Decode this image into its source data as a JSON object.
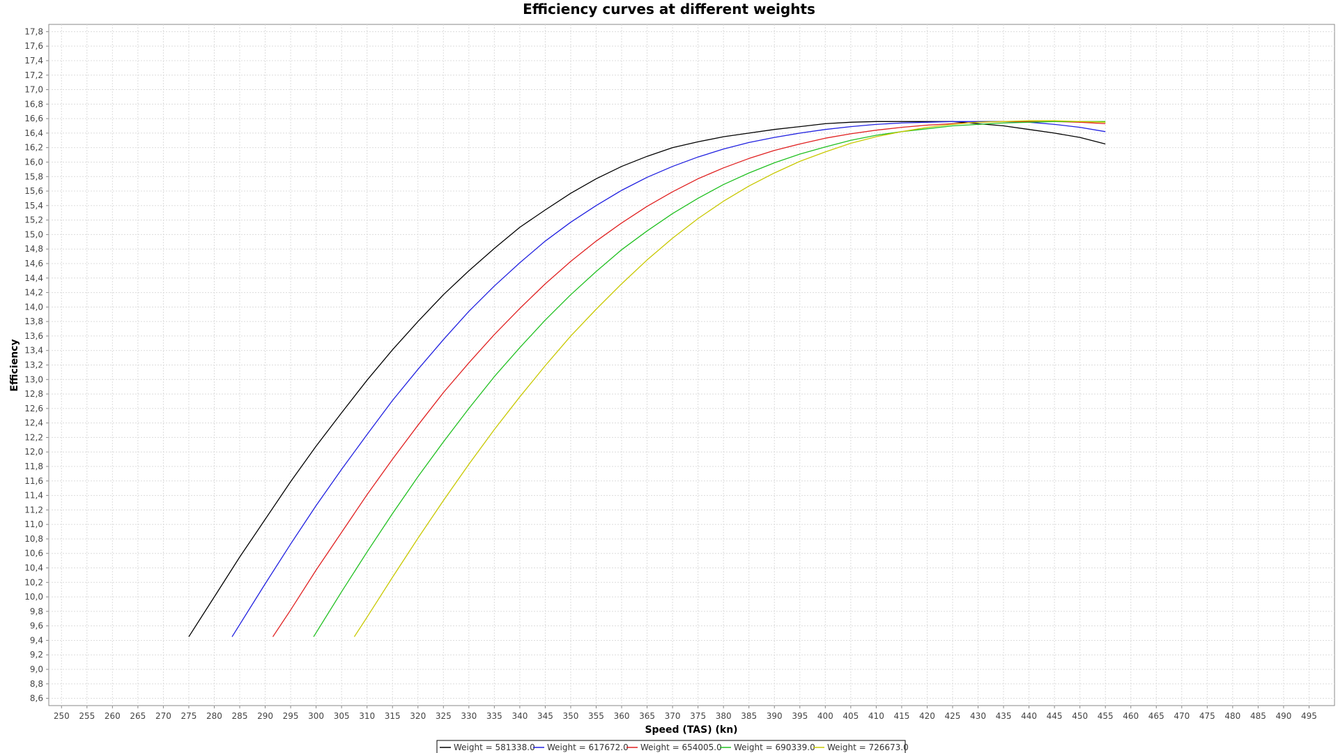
{
  "chart_data": {
    "type": "line",
    "title": "Efficiency curves at different weights",
    "xlabel": "Speed (TAS) (kn)",
    "ylabel": "Efficiency",
    "xlim": [
      247.5,
      500
    ],
    "ylim": [
      8.5,
      17.9
    ],
    "x_ticks": [
      250,
      255,
      260,
      265,
      270,
      275,
      280,
      285,
      290,
      295,
      300,
      305,
      310,
      315,
      320,
      325,
      330,
      335,
      340,
      345,
      350,
      355,
      360,
      365,
      370,
      375,
      380,
      385,
      390,
      395,
      400,
      405,
      410,
      415,
      420,
      425,
      430,
      435,
      440,
      445,
      450,
      455,
      460,
      465,
      470,
      475,
      480,
      485,
      490,
      495
    ],
    "y_ticks": [
      "8,6",
      "8,8",
      "9,0",
      "9,2",
      "9,4",
      "9,6",
      "9,8",
      "10,0",
      "10,2",
      "10,4",
      "10,6",
      "10,8",
      "11,0",
      "11,2",
      "11,4",
      "11,6",
      "11,8",
      "12,0",
      "12,2",
      "12,4",
      "12,6",
      "12,8",
      "13,0",
      "13,2",
      "13,4",
      "13,6",
      "13,8",
      "14,0",
      "14,2",
      "14,4",
      "14,6",
      "14,8",
      "15,0",
      "15,2",
      "15,4",
      "15,6",
      "15,8",
      "16,0",
      "16,2",
      "16,4",
      "16,6",
      "16,8",
      "17,0",
      "17,2",
      "17,4",
      "17,6",
      "17,8"
    ],
    "grid": true,
    "legend_position": "bottom",
    "series": [
      {
        "name": "Weight = 581338.0",
        "color": "#000000",
        "x": [
          275,
          280,
          285,
          290,
          295,
          300,
          305,
          310,
          315,
          320,
          325,
          330,
          335,
          340,
          345,
          350,
          355,
          360,
          365,
          370,
          375,
          380,
          385,
          390,
          395,
          400,
          405,
          410,
          415,
          420,
          425,
          430,
          435,
          440,
          445,
          450,
          455
        ],
        "y": [
          9.45,
          10.0,
          10.55,
          11.07,
          11.59,
          12.08,
          12.54,
          12.99,
          13.41,
          13.8,
          14.17,
          14.5,
          14.81,
          15.1,
          15.34,
          15.57,
          15.77,
          15.94,
          16.08,
          16.2,
          16.28,
          16.35,
          16.4,
          16.45,
          16.49,
          16.53,
          16.55,
          16.56,
          16.56,
          16.56,
          16.56,
          16.53,
          16.5,
          16.45,
          16.4,
          16.34,
          16.25
        ]
      },
      {
        "name": "Weight = 617672.0",
        "color": "#2020e0",
        "x": [
          283.5,
          290,
          295,
          300,
          305,
          310,
          315,
          320,
          325,
          330,
          335,
          340,
          345,
          350,
          355,
          360,
          365,
          370,
          375,
          380,
          385,
          390,
          395,
          400,
          405,
          410,
          415,
          420,
          425,
          430,
          435,
          440,
          445,
          450,
          455
        ],
        "y": [
          9.45,
          10.18,
          10.73,
          11.26,
          11.76,
          12.24,
          12.71,
          13.14,
          13.55,
          13.94,
          14.29,
          14.61,
          14.91,
          15.17,
          15.4,
          15.61,
          15.79,
          15.94,
          16.07,
          16.18,
          16.27,
          16.34,
          16.4,
          16.45,
          16.49,
          16.52,
          16.54,
          16.55,
          16.56,
          16.56,
          16.56,
          16.55,
          16.52,
          16.48,
          16.42
        ]
      },
      {
        "name": "Weight = 654005.0",
        "color": "#e02020",
        "x": [
          291.5,
          295,
          300,
          305,
          310,
          315,
          320,
          325,
          330,
          335,
          340,
          345,
          350,
          355,
          360,
          365,
          370,
          375,
          380,
          385,
          390,
          395,
          400,
          405,
          410,
          415,
          420,
          425,
          430,
          435,
          440,
          445,
          450,
          455
        ],
        "y": [
          9.45,
          9.82,
          10.37,
          10.89,
          11.41,
          11.9,
          12.37,
          12.82,
          13.23,
          13.62,
          13.98,
          14.32,
          14.63,
          14.91,
          15.16,
          15.39,
          15.59,
          15.77,
          15.92,
          16.05,
          16.16,
          16.25,
          16.33,
          16.39,
          16.44,
          16.48,
          16.51,
          16.53,
          16.55,
          16.56,
          16.56,
          16.56,
          16.55,
          16.53
        ]
      },
      {
        "name": "Weight = 690339.0",
        "color": "#20c020",
        "x": [
          299.5,
          305,
          310,
          315,
          320,
          325,
          330,
          335,
          340,
          345,
          350,
          355,
          360,
          365,
          370,
          375,
          380,
          385,
          390,
          395,
          400,
          405,
          410,
          415,
          420,
          425,
          430,
          435,
          440,
          445,
          450,
          455
        ],
        "y": [
          9.45,
          10.07,
          10.62,
          11.15,
          11.66,
          12.14,
          12.6,
          13.04,
          13.44,
          13.82,
          14.17,
          14.49,
          14.79,
          15.05,
          15.29,
          15.5,
          15.69,
          15.85,
          15.99,
          16.11,
          16.21,
          16.3,
          16.37,
          16.42,
          16.46,
          16.5,
          16.52,
          16.54,
          16.55,
          16.56,
          16.56,
          16.56
        ]
      },
      {
        "name": "Weight = 726673.0",
        "color": "#c8c800",
        "x": [
          307.5,
          310,
          315,
          320,
          325,
          330,
          335,
          340,
          345,
          350,
          355,
          360,
          365,
          370,
          375,
          380,
          385,
          390,
          395,
          400,
          405,
          410,
          415,
          420,
          425,
          430,
          435,
          440,
          445,
          450,
          455
        ],
        "y": [
          9.45,
          9.72,
          10.27,
          10.81,
          11.33,
          11.83,
          12.31,
          12.76,
          13.19,
          13.6,
          13.97,
          14.32,
          14.65,
          14.95,
          15.22,
          15.46,
          15.67,
          15.85,
          16.01,
          16.14,
          16.26,
          16.35,
          16.42,
          16.48,
          16.52,
          16.55,
          16.56,
          16.57,
          16.57,
          16.56,
          16.55
        ]
      }
    ]
  }
}
